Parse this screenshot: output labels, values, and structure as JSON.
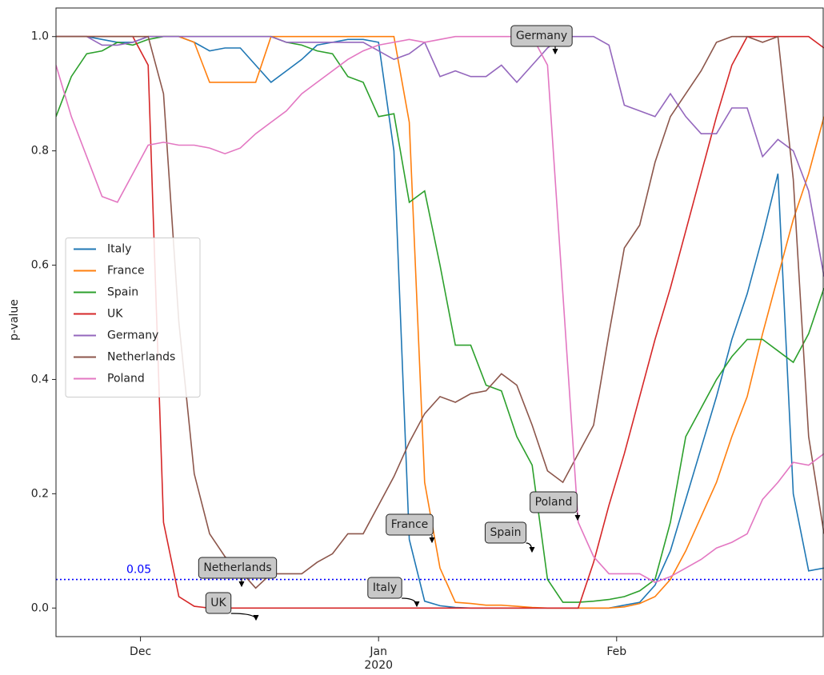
{
  "chart_data": {
    "type": "line",
    "y_label": "p-value",
    "x": [
      -11,
      -9,
      -7,
      -5,
      -3,
      -1,
      1,
      3,
      5,
      7,
      9,
      11,
      13,
      15,
      17,
      19,
      21,
      23,
      25,
      27,
      29,
      31,
      33,
      35,
      37,
      39,
      41,
      43,
      45,
      47,
      49,
      51,
      53,
      55,
      57,
      59,
      61,
      63,
      65,
      67,
      69,
      71,
      73,
      75,
      77,
      79,
      81,
      83,
      85,
      87,
      89
    ],
    "xlim": [
      -11,
      89
    ],
    "xticks": [
      {
        "value": 0,
        "label": "Dec"
      },
      {
        "value": 31,
        "label": "Jan"
      },
      {
        "value": 62,
        "label": "Feb"
      }
    ],
    "x_year": "2020",
    "ylim": [
      -0.05,
      1.05
    ],
    "yticks": [
      {
        "value": 0,
        "label": "0.0"
      },
      {
        "value": 0.2,
        "label": "0.2"
      },
      {
        "value": 0.4,
        "label": "0.4"
      },
      {
        "value": 0.6,
        "label": "0.6"
      },
      {
        "value": 0.8,
        "label": "0.8"
      },
      {
        "value": 1,
        "label": "1.0"
      }
    ],
    "threshold": 0.05,
    "threshold_color": "#0000ff",
    "legend": "center left",
    "series": [
      {
        "name": "Italy",
        "color": "#1f77b4",
        "values": [
          1,
          1,
          1,
          0.995,
          0.99,
          0.99,
          1,
          1,
          1,
          0.99,
          0.975,
          0.98,
          0.98,
          0.95,
          0.92,
          0.94,
          0.96,
          0.985,
          0.99,
          0.995,
          0.995,
          0.99,
          0.8,
          0.12,
          0.012,
          0.004,
          0.001,
          0,
          0,
          0,
          0,
          0,
          0,
          0,
          0,
          0,
          0,
          0.005,
          0.01,
          0.04,
          0.1,
          0.19,
          0.28,
          0.37,
          0.47,
          0.55,
          0.65,
          0.76,
          0.2,
          0.065,
          0.07
        ]
      },
      {
        "name": "France",
        "color": "#ff7f0e",
        "values": [
          1,
          1,
          1,
          1,
          1,
          1,
          1,
          1,
          1,
          0.99,
          0.92,
          0.92,
          0.92,
          0.92,
          1,
          1,
          1,
          1,
          1,
          1,
          1,
          1,
          1,
          0.85,
          0.22,
          0.07,
          0.01,
          0.008,
          0.005,
          0.005,
          0.003,
          0.001,
          0,
          0,
          0,
          0,
          0,
          0.002,
          0.008,
          0.02,
          0.05,
          0.1,
          0.16,
          0.22,
          0.3,
          0.37,
          0.48,
          0.58,
          0.68,
          0.76,
          0.86
        ]
      },
      {
        "name": "Spain",
        "color": "#2ca02c",
        "values": [
          0.86,
          0.93,
          0.97,
          0.975,
          0.99,
          0.985,
          0.995,
          1,
          1,
          1,
          1,
          1,
          1,
          1,
          1,
          0.99,
          0.985,
          0.975,
          0.97,
          0.93,
          0.92,
          0.86,
          0.865,
          0.71,
          0.73,
          0.6,
          0.46,
          0.46,
          0.39,
          0.38,
          0.3,
          0.25,
          0.05,
          0.01,
          0.01,
          0.012,
          0.015,
          0.02,
          0.03,
          0.05,
          0.15,
          0.3,
          0.35,
          0.4,
          0.44,
          0.47,
          0.47,
          0.45,
          0.43,
          0.48,
          0.56
        ]
      },
      {
        "name": "UK",
        "color": "#d62728",
        "values": [
          1,
          1,
          1,
          1,
          1,
          1,
          0.95,
          0.15,
          0.02,
          0.003,
          0,
          0,
          0,
          0,
          0,
          0,
          0,
          0,
          0,
          0,
          0,
          0,
          0,
          0,
          0,
          0,
          0,
          0,
          0,
          0,
          0,
          0,
          0,
          0,
          0,
          0.08,
          0.18,
          0.27,
          0.37,
          0.47,
          0.56,
          0.66,
          0.76,
          0.86,
          0.95,
          1,
          1,
          1,
          1,
          1,
          0.98
        ]
      },
      {
        "name": "Germany",
        "color": "#9467bd",
        "values": [
          1,
          1,
          1,
          0.985,
          0.985,
          0.99,
          1,
          1,
          1,
          1,
          1,
          1,
          1,
          1,
          1,
          0.99,
          0.99,
          0.99,
          0.99,
          0.99,
          0.99,
          0.975,
          0.96,
          0.97,
          0.99,
          0.93,
          0.94,
          0.93,
          0.93,
          0.95,
          0.92,
          0.95,
          0.98,
          1,
          1,
          1,
          0.985,
          0.88,
          0.87,
          0.86,
          0.9,
          0.86,
          0.83,
          0.83,
          0.875,
          0.875,
          0.79,
          0.82,
          0.8,
          0.73,
          0.58
        ]
      },
      {
        "name": "Netherlands",
        "color": "#8c564b",
        "values": [
          1,
          1,
          1,
          1,
          1,
          1,
          1,
          0.9,
          0.5,
          0.235,
          0.13,
          0.09,
          0.065,
          0.035,
          0.06,
          0.06,
          0.06,
          0.08,
          0.095,
          0.13,
          0.13,
          0.18,
          0.23,
          0.29,
          0.34,
          0.37,
          0.36,
          0.375,
          0.38,
          0.41,
          0.39,
          0.32,
          0.24,
          0.22,
          0.27,
          0.32,
          0.48,
          0.63,
          0.67,
          0.78,
          0.86,
          0.9,
          0.94,
          0.99,
          1,
          1,
          0.99,
          1,
          0.75,
          0.3,
          0.13
        ]
      },
      {
        "name": "Poland",
        "color": "#e377c2",
        "values": [
          0.95,
          0.86,
          0.79,
          0.72,
          0.71,
          0.76,
          0.81,
          0.815,
          0.81,
          0.81,
          0.805,
          0.795,
          0.805,
          0.83,
          0.85,
          0.87,
          0.9,
          0.92,
          0.94,
          0.96,
          0.975,
          0.985,
          0.99,
          0.995,
          0.99,
          0.995,
          1,
          1,
          1,
          1,
          1,
          1,
          0.95,
          0.55,
          0.15,
          0.09,
          0.06,
          0.06,
          0.06,
          0.045,
          0.055,
          0.07,
          0.085,
          0.105,
          0.115,
          0.13,
          0.19,
          0.22,
          0.255,
          0.25,
          0.27
        ]
      }
    ],
    "annotations": [
      "Germany",
      "France",
      "Poland",
      "Spain",
      "Italy",
      "Netherlands",
      "UK"
    ]
  }
}
